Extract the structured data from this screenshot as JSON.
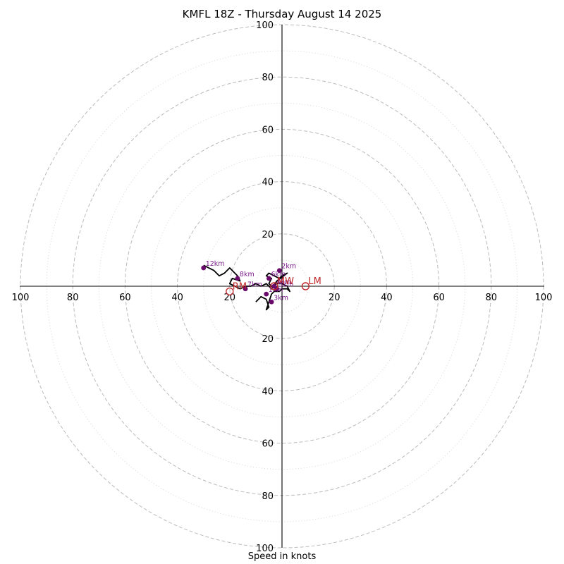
{
  "chart_data": {
    "type": "hodograph",
    "title": "KMFL 18Z - Thursday August 14 2025",
    "xlabel": "Speed in knots",
    "max_speed": 100,
    "ring_major": [
      20,
      40,
      60,
      80,
      100
    ],
    "ring_minor": [
      10,
      30,
      50,
      70,
      90
    ],
    "tick_labels": [
      "20",
      "40",
      "60",
      "80",
      "100"
    ],
    "grid": true,
    "trace": [
      [
        -10,
        -6
      ],
      [
        -8,
        -4
      ],
      [
        -6,
        -5
      ],
      [
        -5,
        -8
      ],
      [
        -6,
        -9
      ],
      [
        -5,
        -6
      ],
      [
        -4,
        -3
      ],
      [
        -3,
        -2
      ],
      [
        -2,
        -2
      ],
      [
        -1,
        -2
      ],
      [
        0,
        -1
      ],
      [
        1,
        -1
      ],
      [
        2,
        -1
      ],
      [
        3,
        -2
      ],
      [
        2,
        0
      ],
      [
        0,
        1
      ],
      [
        -2,
        1
      ],
      [
        -4,
        0
      ],
      [
        -5,
        1
      ],
      [
        -4,
        3
      ],
      [
        -6,
        4
      ],
      [
        -5,
        5
      ],
      [
        -3,
        4
      ],
      [
        -1,
        3
      ],
      [
        0,
        4
      ],
      [
        2,
        5
      ],
      [
        -2,
        2
      ],
      [
        -4,
        -1
      ],
      [
        -6,
        1
      ],
      [
        -8,
        0
      ],
      [
        -10,
        1
      ],
      [
        -12,
        0
      ],
      [
        -14,
        0
      ],
      [
        -16,
        -1
      ],
      [
        -18,
        0
      ],
      [
        -20,
        1
      ],
      [
        -19,
        3
      ],
      [
        -16,
        2
      ],
      [
        -17,
        4
      ],
      [
        -20,
        7
      ],
      [
        -22,
        5
      ],
      [
        -24,
        4
      ],
      [
        -26,
        6
      ],
      [
        -30,
        8
      ]
    ],
    "height_points": [
      {
        "label": "1km",
        "u": -6,
        "v": -3
      },
      {
        "label": "2km",
        "u": -1,
        "v": 6
      },
      {
        "label": "3km",
        "u": -4,
        "v": -6
      },
      {
        "label": "4km",
        "u": -3,
        "v": 0
      },
      {
        "label": "5km",
        "u": -2,
        "v": -1
      },
      {
        "label": "6km",
        "u": -5,
        "v": 3
      },
      {
        "label": "7km",
        "u": -14,
        "v": -1
      },
      {
        "label": "8km",
        "u": -17,
        "v": 3
      },
      {
        "label": "12km",
        "u": -30,
        "v": 7
      }
    ],
    "storm_motions": [
      {
        "label": "LM",
        "u": 9,
        "v": 0
      },
      {
        "label": "MW",
        "u": -3,
        "v": 0
      },
      {
        "label": "RM",
        "u": -20,
        "v": -2
      }
    ]
  }
}
